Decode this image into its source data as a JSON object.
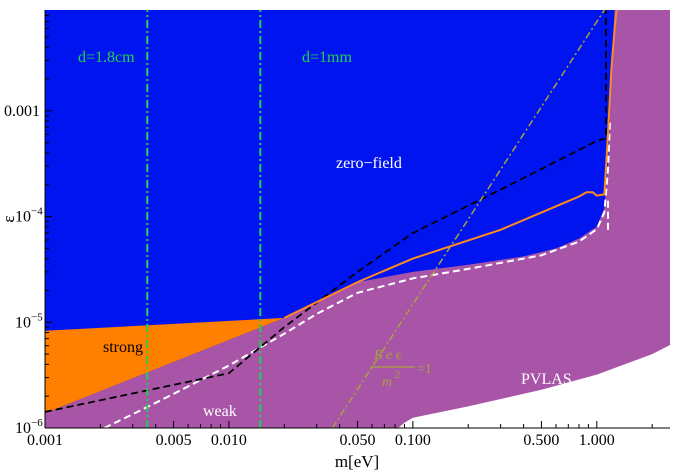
{
  "chart_data": {
    "type": "area",
    "xlabel": "m[eV]",
    "ylabel": "ε",
    "x_scale": "log",
    "y_scale": "log",
    "xlim": [
      0.001,
      2.5
    ],
    "ylim": [
      1e-06,
      0.009
    ],
    "grid": false,
    "x_ticks": [
      {
        "value": 0.001,
        "label": "0.001"
      },
      {
        "value": 0.005,
        "label": "0.005"
      },
      {
        "value": 0.01,
        "label": "0.010"
      },
      {
        "value": 0.05,
        "label": "0.050"
      },
      {
        "value": 0.1,
        "label": "0.100"
      },
      {
        "value": 0.5,
        "label": "0.500"
      },
      {
        "value": 1.0,
        "label": "1.000"
      }
    ],
    "y_ticks": [
      {
        "value": 1e-06,
        "base": "10",
        "exp": "−6"
      },
      {
        "value": 1e-05,
        "base": "10",
        "exp": "−5"
      },
      {
        "value": 0.0001,
        "base": "10",
        "exp": "−4"
      },
      {
        "value": 0.001,
        "label": "0.001"
      }
    ],
    "colors": {
      "zero_field": "#0014f0",
      "strong": "#ff7f00",
      "pvlas": "#a855a8",
      "white_dashed": "#ffffff",
      "black_dashed": "#000000",
      "orange_line": "#ff8a1e",
      "green_dashdot": "#22d04a",
      "olive_dashdot": "#a7a23a"
    },
    "regions": [
      {
        "name": "zero-field",
        "label": "zero−field",
        "boundary": [
          [
            0.001,
            8.3e-06
          ],
          [
            0.02,
            1.1e-05
          ],
          [
            0.05,
            2.4e-05
          ],
          [
            0.1,
            3e-05
          ],
          [
            0.2,
            3.5e-05
          ],
          [
            0.4,
            4.2e-05
          ],
          [
            0.6,
            5e-05
          ],
          [
            0.8,
            6.2e-05
          ],
          [
            1.0,
            8e-05
          ],
          [
            1.1,
            0.00012
          ],
          [
            1.15,
            0.0003
          ],
          [
            1.2,
            0.002
          ],
          [
            1.25,
            0.009
          ]
        ]
      },
      {
        "name": "strong",
        "label": "strong",
        "upper": [
          [
            0.001,
            8.3e-06
          ],
          [
            0.02,
            1.1e-05
          ]
        ],
        "lower": [
          [
            0.001,
            1.38e-06
          ],
          [
            0.02,
            1.1e-05
          ]
        ]
      },
      {
        "name": "PVLAS",
        "label": "PVLAS",
        "upper": [
          [
            0.001,
            1.38e-06
          ],
          [
            0.02,
            1.1e-05
          ],
          [
            0.05,
            2.4e-05
          ],
          [
            0.1,
            3e-05
          ],
          [
            0.2,
            3.5e-05
          ],
          [
            0.4,
            4.2e-05
          ],
          [
            0.6,
            5e-05
          ],
          [
            0.8,
            6.2e-05
          ],
          [
            1.0,
            8e-05
          ],
          [
            1.1,
            0.00012
          ],
          [
            1.15,
            0.0003
          ],
          [
            1.2,
            0.002
          ],
          [
            1.25,
            0.009
          ]
        ],
        "lower": [
          [
            0.083,
            1e-06
          ],
          [
            0.09,
            1.12e-06
          ],
          [
            0.1,
            1.25e-06
          ],
          [
            0.2,
            1.6e-06
          ],
          [
            0.5,
            2.3e-06
          ],
          [
            1.0,
            3.2e-06
          ],
          [
            2.0,
            5e-06
          ],
          [
            2.5,
            6.1e-06
          ]
        ]
      }
    ],
    "series": [
      {
        "name": "weak",
        "label": "weak",
        "style": "white-dashed",
        "points": [
          [
            0.0021,
            1e-06
          ],
          [
            0.003,
            1.35e-06
          ],
          [
            0.005,
            2.1e-06
          ],
          [
            0.01,
            3.9e-06
          ],
          [
            0.02,
            7.8e-06
          ],
          [
            0.03,
            1.2e-05
          ],
          [
            0.05,
            1.9e-05
          ],
          [
            0.1,
            2.6e-05
          ],
          [
            0.2,
            3.2e-05
          ],
          [
            0.5,
            4.3e-05
          ],
          [
            0.8,
            5.8e-05
          ],
          [
            1.0,
            7.6e-05
          ],
          [
            1.1,
            0.00011
          ],
          [
            1.15,
            0.00028
          ],
          [
            1.18,
            0.0008
          ]
        ]
      },
      {
        "name": "white-dashed-vertical",
        "style": "white-dashed",
        "points": [
          [
            1.15,
            7.5e-05
          ],
          [
            1.15,
            0.00015
          ]
        ]
      },
      {
        "name": "black-dashed",
        "style": "black-dashed",
        "points": [
          [
            0.001,
            1.42e-06
          ],
          [
            0.01,
            3.3e-06
          ],
          [
            0.02,
            9e-06
          ],
          [
            0.05,
            3e-05
          ],
          [
            0.1,
            7e-05
          ],
          [
            0.3,
            0.00018
          ],
          [
            0.7,
            0.00038
          ],
          [
            1.0,
            0.00052
          ],
          [
            1.12,
            0.00055
          ],
          [
            1.12,
            0.009
          ]
        ]
      },
      {
        "name": "orange-line",
        "style": "orange-solid",
        "points": [
          [
            0.02,
            1.1e-05
          ],
          [
            0.05,
            2.4e-05
          ],
          [
            0.1,
            4e-05
          ],
          [
            0.3,
            7.5e-05
          ],
          [
            0.6,
            0.000125
          ],
          [
            0.8,
            0.000155
          ],
          [
            0.88,
            0.00017
          ],
          [
            0.95,
            0.00017
          ],
          [
            1.0,
            0.000158
          ],
          [
            1.1,
            0.000162
          ],
          [
            1.15,
            0.0006
          ],
          [
            1.2,
            0.0025
          ],
          [
            1.25,
            0.006
          ],
          [
            1.28,
            0.009
          ]
        ]
      },
      {
        "name": "d-1.8cm",
        "label": "d=1.8cm",
        "style": "green-dashdot-vertical",
        "points": [
          [
            0.0036,
            1e-06
          ],
          [
            0.0036,
            0.009
          ]
        ]
      },
      {
        "name": "d-1mm",
        "label": "d=1mm",
        "style": "green-dashdot-vertical",
        "points": [
          [
            0.0148,
            1e-06
          ],
          [
            0.0148,
            0.009
          ]
        ]
      },
      {
        "name": "Beε/m²=1",
        "style": "olive-dashdot",
        "points": [
          [
            0.0365,
            1e-06
          ],
          [
            1.1,
            0.009
          ]
        ]
      }
    ],
    "annotations": {
      "formula_numerator": "B e ϵ",
      "formula_denominator": "m",
      "formula_denominator_sup": "2",
      "formula_equals": "=1"
    }
  }
}
